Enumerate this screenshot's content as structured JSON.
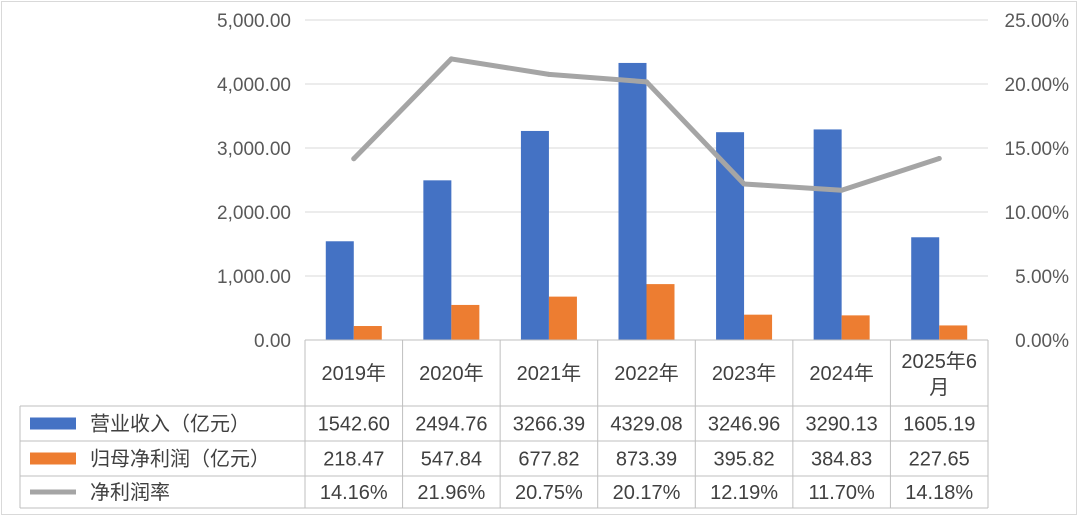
{
  "chart_data": {
    "type": "bar",
    "categories": [
      "2019年",
      "2020年",
      "2021年",
      "2022年",
      "2023年",
      "2024年",
      "2025年6月"
    ],
    "series": [
      {
        "name": "营业收入（亿元）",
        "type": "bar",
        "axis": "left",
        "color": "#4472C4",
        "values": [
          1542.6,
          2494.76,
          3266.39,
          4329.08,
          3246.96,
          3290.13,
          1605.19
        ],
        "labels": [
          "1542.60",
          "2494.76",
          "3266.39",
          "4329.08",
          "3246.96",
          "3290.13",
          "1605.19"
        ]
      },
      {
        "name": "归母净利润（亿元）",
        "type": "bar",
        "axis": "left",
        "color": "#ED7D31",
        "values": [
          218.47,
          547.84,
          677.82,
          873.39,
          395.82,
          384.83,
          227.65
        ],
        "labels": [
          "218.47",
          "547.84",
          "677.82",
          "873.39",
          "395.82",
          "384.83",
          "227.65"
        ]
      },
      {
        "name": "净利润率",
        "type": "line",
        "axis": "right",
        "color": "#A5A5A5",
        "values": [
          14.16,
          21.96,
          20.75,
          20.17,
          12.19,
          11.7,
          14.18
        ],
        "labels": [
          "14.16%",
          "21.96%",
          "20.75%",
          "20.17%",
          "12.19%",
          "11.70%",
          "14.18%"
        ]
      }
    ],
    "y_left": {
      "ylim": [
        0,
        5000
      ],
      "ticks": [
        0,
        1000,
        2000,
        3000,
        4000,
        5000
      ],
      "tick_labels": [
        "0.00",
        "1,000.00",
        "2,000.00",
        "3,000.00",
        "4,000.00",
        "5,000.00"
      ]
    },
    "y_right": {
      "ylim": [
        0,
        25
      ],
      "ticks": [
        0,
        5,
        10,
        15,
        20,
        25
      ],
      "tick_labels": [
        "0.00%",
        "5.00%",
        "10.00%",
        "15.00%",
        "20.00%",
        "25.00%"
      ]
    },
    "grid": true,
    "data_table": true,
    "legend": "in data table"
  }
}
